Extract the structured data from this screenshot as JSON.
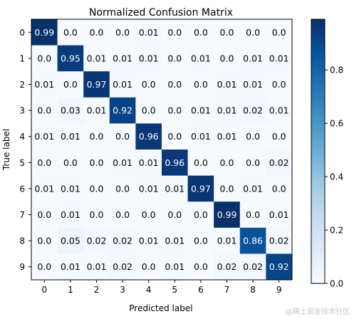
{
  "chart_data": {
    "type": "heatmap",
    "title": "Normalized Confusion Matrix",
    "xlabel": "Predicted label",
    "ylabel": "True label",
    "x_tick_labels": [
      "0",
      "1",
      "2",
      "3",
      "4",
      "5",
      "6",
      "7",
      "8",
      "9"
    ],
    "y_tick_labels": [
      "0",
      "1",
      "2",
      "3",
      "4",
      "5",
      "6",
      "7",
      "8",
      "9"
    ],
    "matrix": [
      [
        "0.99",
        "0.0",
        "0.0",
        "0.0",
        "0.01",
        "0.0",
        "0.0",
        "0.0",
        "0.0",
        "0.0"
      ],
      [
        "0.0",
        "0.95",
        "0.01",
        "0.01",
        "0.01",
        "0.0",
        "0.01",
        "0.0",
        "0.01",
        "0.01"
      ],
      [
        "0.01",
        "0.0",
        "0.97",
        "0.01",
        "0.0",
        "0.0",
        "0.0",
        "0.01",
        "0.01",
        "0.0"
      ],
      [
        "0.0",
        "0.03",
        "0.01",
        "0.92",
        "0.0",
        "0.0",
        "0.01",
        "0.01",
        "0.02",
        "0.01"
      ],
      [
        "0.01",
        "0.01",
        "0.0",
        "0.0",
        "0.96",
        "0.0",
        "0.01",
        "0.01",
        "0.0",
        "0.0"
      ],
      [
        "0.0",
        "0.0",
        "0.0",
        "0.01",
        "0.01",
        "0.96",
        "0.0",
        "0.0",
        "0.0",
        "0.02"
      ],
      [
        "0.01",
        "0.01",
        "0.0",
        "0.0",
        "0.01",
        "0.01",
        "0.97",
        "0.0",
        "0.01",
        "0.0"
      ],
      [
        "0.0",
        "0.01",
        "0.0",
        "0.0",
        "0.0",
        "0.0",
        "0.0",
        "0.99",
        "0.0",
        "0.01"
      ],
      [
        "0.0",
        "0.05",
        "0.02",
        "0.02",
        "0.01",
        "0.01",
        "0.0",
        "0.01",
        "0.86",
        "0.02"
      ],
      [
        "0.0",
        "0.01",
        "0.01",
        "0.02",
        "0.0",
        "0.01",
        "0.0",
        "0.02",
        "0.02",
        "0.92"
      ]
    ],
    "colorbar": {
      "colormap": "Blues",
      "range": [
        0.0,
        0.99
      ],
      "tick_values": [
        0.0,
        0.2,
        0.4,
        0.6,
        0.8
      ],
      "tick_labels": [
        "0.0",
        "0.2",
        "0.4",
        "0.6",
        "0.8"
      ]
    },
    "text_color_dark": "#000000",
    "text_color_light": "#ffffff",
    "text_threshold": 0.5,
    "grid": false
  },
  "watermark": "@稀土掘金技术社区"
}
